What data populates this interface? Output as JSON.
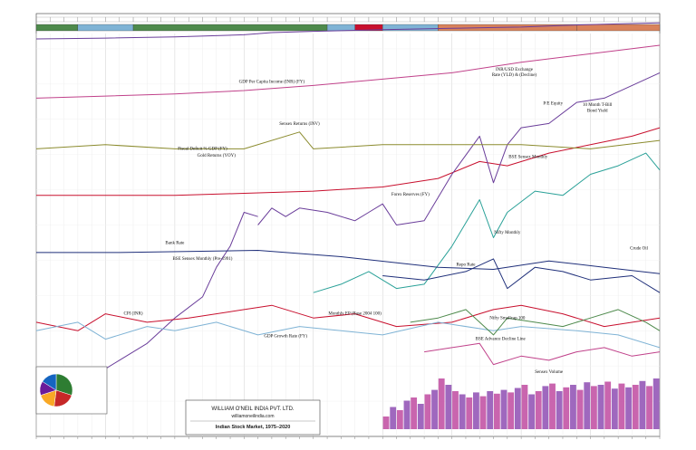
{
  "brand": {
    "company": "WILLIAM O'NEIL INDIA PVT. LTD.",
    "website": "williamoneilindia.com",
    "title": "Indian Stock Market, 1975–2020"
  },
  "colors": {
    "green": "#4e8a4c",
    "blue": "#7fb3d5",
    "red": "#c8102e",
    "orange": "#d9825b",
    "navy": "#1f2f7a",
    "purple": "#6a3d9a",
    "magenta": "#c0418a",
    "teal": "#2aa198",
    "olive": "#8b8b2e",
    "grey": "#9a9a9a"
  },
  "chart_data": {
    "type": "line",
    "x_range": [
      1975,
      2020
    ],
    "top_band": [
      {
        "from": 1975,
        "to": 1978,
        "color": "green"
      },
      {
        "from": 1978,
        "to": 1982,
        "color": "blue"
      },
      {
        "from": 1982,
        "to": 1996,
        "color": "green"
      },
      {
        "from": 1996,
        "to": 1998,
        "color": "blue"
      },
      {
        "from": 1998,
        "to": 2000,
        "color": "red"
      },
      {
        "from": 2000,
        "to": 2004,
        "color": "blue"
      },
      {
        "from": 2004,
        "to": 2014,
        "color": "orange"
      },
      {
        "from": 2014,
        "to": 2020,
        "color": "orange"
      }
    ],
    "annotations": [
      {
        "text": "INR/USD Exchange",
        "year": 2009.5,
        "band": 0.135
      },
      {
        "text": "Rate (YLD) & (Decline)",
        "year": 2009.5,
        "band": 0.148
      },
      {
        "text": "GDP Per Capita Income (INR) (FY)",
        "year": 1992,
        "band": 0.164
      },
      {
        "text": "P/E Equity",
        "year": 2012.3,
        "band": 0.215
      },
      {
        "text": "10 Month T-Bill",
        "year": 2015.5,
        "band": 0.218
      },
      {
        "text": "Bond Yield",
        "year": 2015.5,
        "band": 0.232
      },
      {
        "text": "Sensex Returns (INV)",
        "year": 1994,
        "band": 0.263
      },
      {
        "text": "Fiscal Deficit % GDP (FY)",
        "year": 1987,
        "band": 0.322
      },
      {
        "text": "Gold Returns (YOY)",
        "year": 1988,
        "band": 0.338
      },
      {
        "text": "BSE Sensex Monthly",
        "year": 2010.5,
        "band": 0.342
      },
      {
        "text": "Forex Reserves (FY)",
        "year": 2002,
        "band": 0.43
      },
      {
        "text": "Nifty Monthly",
        "year": 2009,
        "band": 0.52
      },
      {
        "text": "Bank Rate",
        "year": 1985,
        "band": 0.545
      },
      {
        "text": "BSE Sensex Monthly (Pre-1991)",
        "year": 1987,
        "band": 0.582
      },
      {
        "text": "Crude Oil",
        "year": 2018.5,
        "band": 0.558
      },
      {
        "text": "Repo Rate",
        "year": 2006,
        "band": 0.596
      },
      {
        "text": "CPI (INR)",
        "year": 1982,
        "band": 0.712
      },
      {
        "text": "Monthly EP (Base 2004 100)",
        "year": 1998,
        "band": 0.712
      },
      {
        "text": "Nifty Smallcap 100",
        "year": 2009,
        "band": 0.723
      },
      {
        "text": "GDP Growth Rate (FY)",
        "year": 1993,
        "band": 0.765
      },
      {
        "text": "BSE Advance Decline Line",
        "year": 2008.5,
        "band": 0.772
      },
      {
        "text": "Sensex Volume",
        "year": 2012,
        "band": 0.85
      }
    ],
    "series": [
      {
        "key": "inr_usd",
        "color": "purple",
        "x": [
          1975,
          1980,
          1985,
          1990,
          1992,
          1995,
          2000,
          2005,
          2008,
          2010,
          2013,
          2016,
          2020
        ],
        "y": [
          0.06,
          0.058,
          0.055,
          0.05,
          0.045,
          0.042,
          0.038,
          0.035,
          0.033,
          0.032,
          0.028,
          0.025,
          0.022
        ]
      },
      {
        "key": "gdp_per_capita",
        "color": "magenta",
        "x": [
          1975,
          1980,
          1985,
          1990,
          1995,
          2000,
          2005,
          2010,
          2015,
          2020
        ],
        "y": [
          0.2,
          0.195,
          0.19,
          0.182,
          0.17,
          0.155,
          0.14,
          0.115,
          0.095,
          0.075
        ]
      },
      {
        "key": "forex",
        "color": "red",
        "x": [
          1975,
          1985,
          1990,
          1995,
          2000,
          2004,
          2007,
          2009,
          2012,
          2015,
          2018,
          2020
        ],
        "y": [
          0.43,
          0.43,
          0.425,
          0.42,
          0.41,
          0.39,
          0.35,
          0.36,
          0.33,
          0.31,
          0.29,
          0.27
        ]
      },
      {
        "key": "sensex_monthly",
        "color": "purple",
        "x": [
          1991,
          1992,
          1993,
          1994,
          1996,
          1998,
          1999,
          2000,
          2001,
          2003,
          2005,
          2007,
          2008,
          2009,
          2010,
          2012,
          2014,
          2016,
          2018,
          2020
        ],
        "y": [
          0.5,
          0.46,
          0.48,
          0.46,
          0.47,
          0.49,
          0.47,
          0.45,
          0.5,
          0.49,
          0.38,
          0.29,
          0.4,
          0.31,
          0.27,
          0.26,
          0.21,
          0.2,
          0.17,
          0.14
        ]
      },
      {
        "key": "nifty_monthly",
        "color": "teal",
        "x": [
          1995,
          1997,
          1999,
          2001,
          2003,
          2005,
          2007,
          2008,
          2009,
          2011,
          2013,
          2015,
          2017,
          2019,
          2020
        ],
        "y": [
          0.66,
          0.64,
          0.61,
          0.65,
          0.64,
          0.55,
          0.44,
          0.53,
          0.47,
          0.42,
          0.43,
          0.38,
          0.36,
          0.33,
          0.37
        ]
      },
      {
        "key": "pre91_sensex",
        "color": "purple",
        "x": [
          1975,
          1977,
          1979,
          1981,
          1983,
          1985,
          1987,
          1988,
          1989,
          1990,
          1991
        ],
        "y": [
          0.94,
          0.92,
          0.86,
          0.82,
          0.78,
          0.72,
          0.67,
          0.6,
          0.55,
          0.47,
          0.48
        ]
      },
      {
        "key": "bank_rate",
        "color": "navy",
        "x": [
          1975,
          1981,
          1991,
          1997,
          2004,
          2008,
          2012,
          2016,
          2020
        ],
        "y": [
          0.565,
          0.565,
          0.56,
          0.575,
          0.6,
          0.605,
          0.585,
          0.6,
          0.615
        ]
      },
      {
        "key": "repo_rate",
        "color": "navy",
        "x": [
          2000,
          2003,
          2006,
          2008,
          2009,
          2011,
          2013,
          2015,
          2018,
          2020
        ],
        "y": [
          0.62,
          0.63,
          0.61,
          0.58,
          0.65,
          0.6,
          0.61,
          0.63,
          0.62,
          0.66
        ]
      },
      {
        "key": "cpi",
        "color": "red",
        "x": [
          1975,
          1978,
          1980,
          1983,
          1986,
          1990,
          1992,
          1995,
          1998,
          2001,
          2005,
          2008,
          2010,
          2013,
          2016,
          2020
        ],
        "y": [
          0.73,
          0.75,
          0.71,
          0.73,
          0.72,
          0.7,
          0.69,
          0.72,
          0.71,
          0.74,
          0.73,
          0.7,
          0.69,
          0.71,
          0.74,
          0.72
        ]
      },
      {
        "key": "gdp_growth",
        "color": "blue",
        "x": [
          1975,
          1978,
          1980,
          1983,
          1985,
          1988,
          1991,
          1994,
          1997,
          2000,
          2004,
          2008,
          2010,
          2014,
          2017,
          2020
        ],
        "y": [
          0.75,
          0.73,
          0.77,
          0.74,
          0.75,
          0.73,
          0.76,
          0.74,
          0.75,
          0.76,
          0.73,
          0.75,
          0.74,
          0.75,
          0.76,
          0.79
        ]
      },
      {
        "key": "advance_decline",
        "color": "magenta",
        "x": [
          2003,
          2005,
          2007,
          2008,
          2010,
          2012,
          2014,
          2016,
          2018,
          2020
        ],
        "y": [
          0.8,
          0.79,
          0.78,
          0.83,
          0.81,
          0.82,
          0.8,
          0.79,
          0.81,
          0.8
        ]
      },
      {
        "key": "gold_returns",
        "color": "olive",
        "x": [
          1975,
          1980,
          1985,
          1990,
          1994,
          1995,
          2000,
          2005,
          2010,
          2015,
          2020
        ],
        "y": [
          0.32,
          0.31,
          0.32,
          0.32,
          0.28,
          0.32,
          0.31,
          0.31,
          0.31,
          0.32,
          0.3
        ]
      },
      {
        "key": "smallcap",
        "color": "green",
        "x": [
          2002,
          2004,
          2006,
          2008,
          2009,
          2011,
          2013,
          2015,
          2017,
          2019,
          2020
        ],
        "y": [
          0.73,
          0.72,
          0.7,
          0.76,
          0.72,
          0.73,
          0.74,
          0.72,
          0.7,
          0.73,
          0.75
        ]
      }
    ],
    "volume_bars": {
      "from": 2000,
      "to": 2020,
      "values": [
        0.2,
        0.35,
        0.3,
        0.45,
        0.5,
        0.4,
        0.55,
        0.62,
        0.8,
        0.7,
        0.6,
        0.55,
        0.5,
        0.58,
        0.52,
        0.6,
        0.56,
        0.62,
        0.58,
        0.65,
        0.7,
        0.55,
        0.6,
        0.68,
        0.72,
        0.6,
        0.66,
        0.7,
        0.62,
        0.74,
        0.68,
        0.7,
        0.75,
        0.64,
        0.72,
        0.66,
        0.7,
        0.76,
        0.68,
        0.8
      ]
    },
    "pie": {
      "type": "pie",
      "slices": [
        {
          "value": 30,
          "color": "#2e7d32"
        },
        {
          "value": 22,
          "color": "#c62828"
        },
        {
          "value": 18,
          "color": "#f9a825"
        },
        {
          "value": 14,
          "color": "#6a1b9a"
        },
        {
          "value": 16,
          "color": "#1565c0"
        }
      ]
    }
  }
}
